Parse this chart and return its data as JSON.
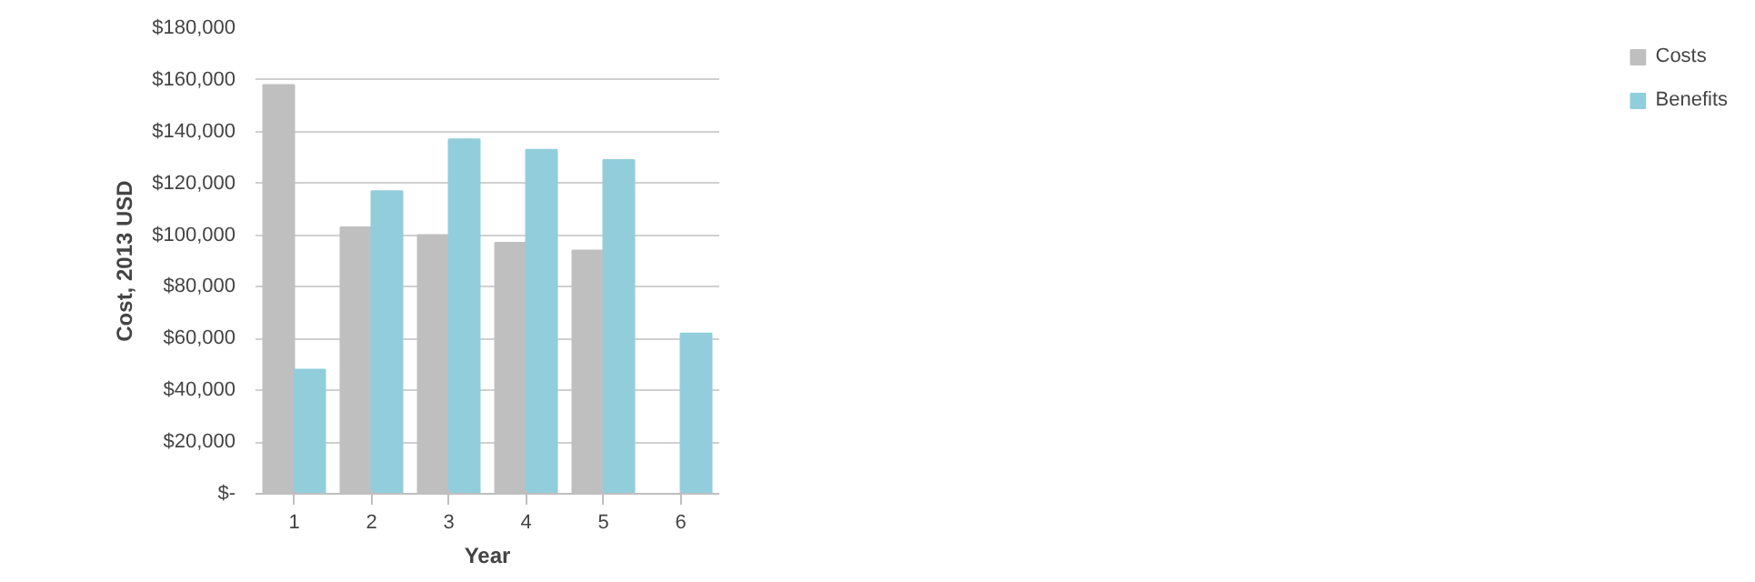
{
  "chart_data": {
    "type": "bar",
    "xlabel": "Year",
    "ylabel": "Cost, 2013 USD",
    "categories": [
      "1",
      "2",
      "3",
      "4",
      "5",
      "6"
    ],
    "series": [
      {
        "name": "Costs",
        "color": "#bfbfbf",
        "values": [
          158000,
          103000,
          100000,
          97000,
          94000,
          null
        ]
      },
      {
        "name": "Benefits",
        "color": "#92cddc",
        "values": [
          48000,
          117000,
          137000,
          133000,
          129000,
          62000
        ]
      }
    ],
    "ylim": [
      0,
      180000
    ],
    "yticks": [
      {
        "value": 0,
        "label": "$-"
      },
      {
        "value": 20000,
        "label": "$20,000"
      },
      {
        "value": 40000,
        "label": "$40,000"
      },
      {
        "value": 60000,
        "label": "$60,000"
      },
      {
        "value": 80000,
        "label": "$80,000"
      },
      {
        "value": 100000,
        "label": "$100,000"
      },
      {
        "value": 120000,
        "label": "$120,000"
      },
      {
        "value": 140000,
        "label": "$140,000"
      },
      {
        "value": 160000,
        "label": "$160,000"
      },
      {
        "value": 180000,
        "label": "$180,000"
      }
    ],
    "grid": "y",
    "legend": "right"
  }
}
